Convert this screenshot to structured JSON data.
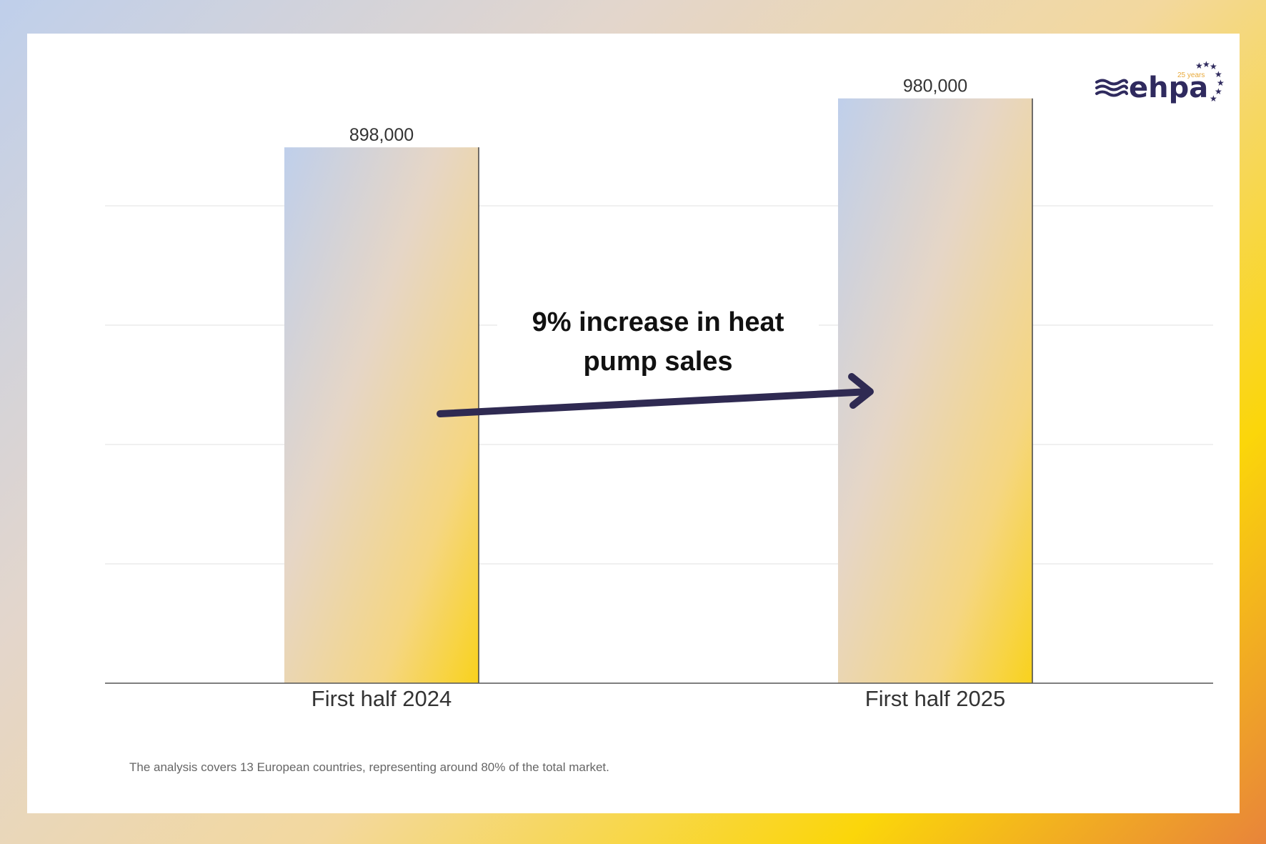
{
  "chart_data": {
    "type": "bar",
    "categories": [
      "First half 2024",
      "First half 2025"
    ],
    "values": [
      898000,
      980000
    ],
    "data_labels": [
      "898,000",
      "980,000"
    ],
    "title": "",
    "xlabel": "",
    "ylabel": "",
    "ylim": [
      0,
      1000000
    ],
    "grid": true,
    "gridlines": [
      200000,
      400000,
      600000,
      800000
    ],
    "annotation": "9% increase in heat pump sales",
    "annotation_lines": [
      "9% increase in heat",
      "pump sales"
    ],
    "footnote": "The analysis covers 13 European countries, representing around 80% of the total market."
  },
  "logo": {
    "text": "ehpa",
    "tagline": "25 years"
  },
  "colors": {
    "arrow": "#2f2a52",
    "bar_top": "#bfcfeb",
    "bar_bottom": "#f9d42a",
    "logo": "#2f2a5e",
    "logo_tagline": "#e8a93a"
  }
}
